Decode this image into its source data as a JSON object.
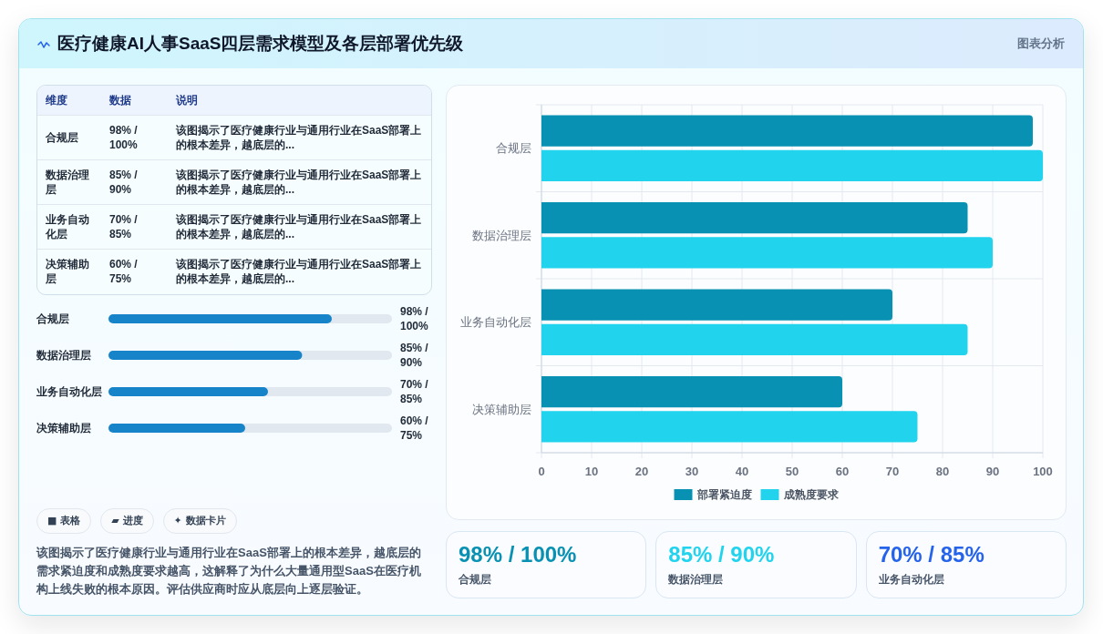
{
  "chart_data": [
    {
      "type": "other",
      "title": "医疗健康AI人事SaaS四层需求模型及各层部署优先级",
      "annotations": [
        "图表分析"
      ]
    },
    {
      "type": "other",
      "categories": [
        "维度",
        "数据",
        "说明"
      ],
      "y_categories": [
        "合规层",
        "数据治理层",
        "业务自动化层",
        "决策辅助层"
      ],
      "cell_labels": [
        [
          "98% / 100%",
          "该图揭示了医疗健康行业与通用行业在SaaS部署上的根本差异，越底层的..."
        ],
        [
          "85% / 90%",
          "该图揭示了医疗健康行业与通用行业在SaaS部署上的根本差异，越底层的..."
        ],
        [
          "70% / 85%",
          "该图揭示了医疗健康行业与通用行业在SaaS部署上的根本差异，越底层的..."
        ],
        [
          "60% / 75%",
          "该图揭示了医疗健康行业与通用行业在SaaS部署上的根本差异，越底层的..."
        ]
      ]
    },
    {
      "type": "bar",
      "orientation": "horizontal",
      "categories": [
        "合规层",
        "数据治理层",
        "业务自动化层",
        "决策辅助层"
      ],
      "series": [
        {
          "name": "部署紧迫度",
          "color": "#0891b2",
          "values": [
            98,
            85,
            70,
            60
          ]
        },
        {
          "name": "成熟度要求",
          "color": "#22d3ee",
          "values": [
            100,
            90,
            85,
            75
          ]
        }
      ],
      "xlim": [
        0,
        100
      ],
      "xticks": [
        0,
        10,
        20,
        30,
        40,
        50,
        60,
        70,
        80,
        90,
        100
      ],
      "grid": true,
      "legend": "bottom"
    },
    {
      "type": "bar",
      "orientation": "horizontal",
      "categories": [
        "合规层",
        "数据治理层",
        "业务自动化层",
        "决策辅助层"
      ],
      "values": [
        98,
        85,
        70,
        60
      ],
      "value_labels": [
        "98% / 100%",
        "85% / 90%",
        "70% / 85%",
        "60% / 75%"
      ],
      "color": "#1784c9"
    },
    {
      "type": "other",
      "categories": [
        "■ 表格",
        "▰ 进度",
        "✦ 数据卡片"
      ],
      "annotations": [
        "该图揭示了医疗健康行业与通用行业在SaaS部署上的根本差异，越底层的需求紧迫度和成熟度要求越高，这解释了为什么大量通用型SaaS在医疗机构上线失败的根本原因。评估供应商时应从底层向上逐层验证。"
      ]
    },
    {
      "type": "other",
      "categories": [
        "合规层",
        "数据治理层",
        "业务自动化层"
      ],
      "value_labels": [
        "98% / 100%",
        "85% / 90%",
        "70% / 85%"
      ]
    }
  ]
}
